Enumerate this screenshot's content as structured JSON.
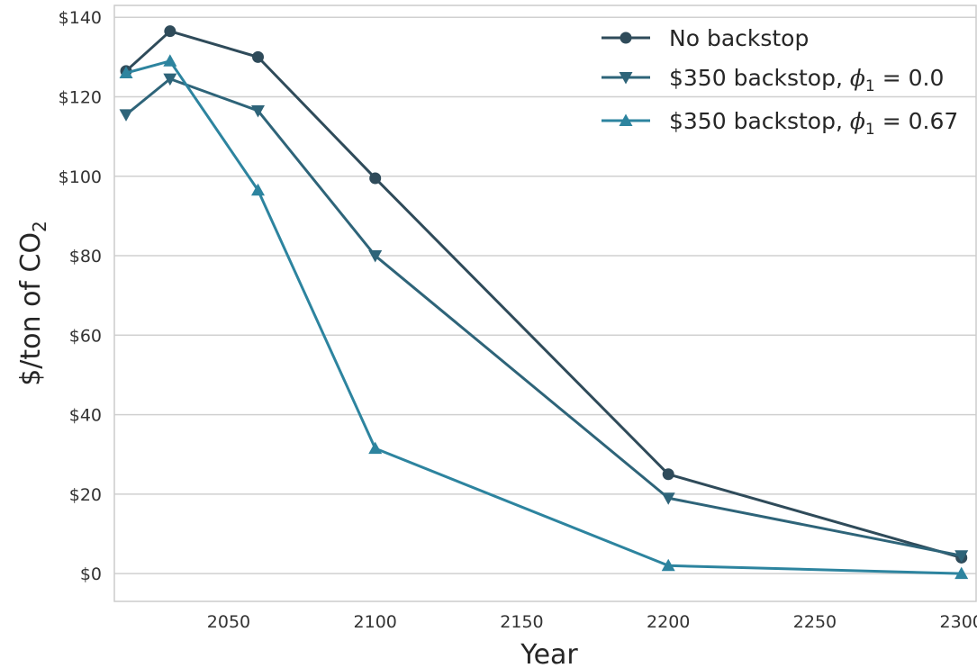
{
  "chart_data": {
    "type": "line",
    "title": "",
    "xlabel": "Year",
    "ylabel_main": "$/ton of CO",
    "ylabel_sub": "2",
    "xlim": [
      2011,
      2305
    ],
    "ylim": [
      -7,
      143
    ],
    "xticks": [
      2050,
      2100,
      2150,
      2200,
      2250,
      2300
    ],
    "xtick_labels": [
      "2050",
      "2100",
      "2150",
      "2200",
      "2250",
      "2300"
    ],
    "yticks": [
      0,
      20,
      40,
      60,
      80,
      100,
      120,
      140
    ],
    "ytick_labels": [
      "$0",
      "$20",
      "$40",
      "$60",
      "$80",
      "$100",
      "$120",
      "$140"
    ],
    "grid": "horizontal",
    "legend_position": "top-right",
    "x": [
      2015,
      2030,
      2060,
      2100,
      2200,
      2300
    ],
    "series": [
      {
        "name": "No backstop",
        "legend_parts": [
          "No backstop"
        ],
        "marker": "circle",
        "color": "#2f4b5a",
        "values": [
          126.5,
          136.5,
          130.0,
          99.5,
          25.0,
          4.0
        ]
      },
      {
        "name": "$350 backstop, ϕ1 = 0.0",
        "legend_parts": [
          "$350 backstop, ",
          "ϕ",
          "1",
          " = 0.0"
        ],
        "marker": "triangle-down",
        "color": "#2e6479",
        "values": [
          115.5,
          124.5,
          116.5,
          80.0,
          19.0,
          4.5
        ]
      },
      {
        "name": "$350 backstop, ϕ1 = 0.67",
        "legend_parts": [
          "$350 backstop, ",
          "ϕ",
          "1",
          " = 0.67"
        ],
        "marker": "triangle-up",
        "color": "#2d849f",
        "values": [
          126.0,
          129.0,
          96.5,
          31.5,
          2.0,
          0.0
        ]
      }
    ]
  }
}
